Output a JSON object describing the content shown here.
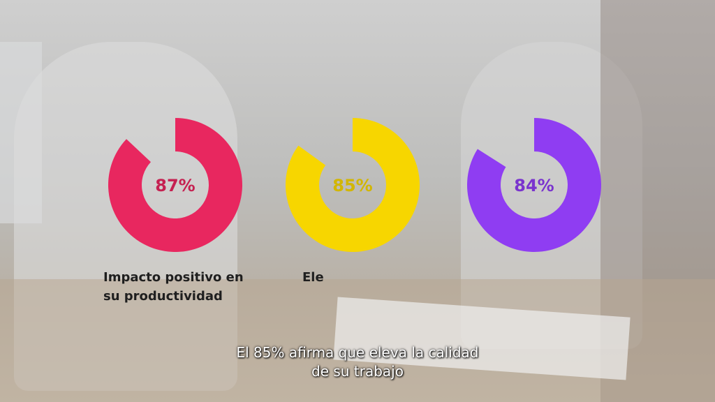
{
  "chart_data": [
    {
      "type": "donut",
      "values": [
        87
      ],
      "value_labels": [
        "87%"
      ],
      "color": "#e8275f",
      "label": "Impacto positivo en su productividad"
    },
    {
      "type": "donut",
      "values": [
        85
      ],
      "value_labels": [
        "85%"
      ],
      "color": "#f7d600",
      "label": "Ele"
    },
    {
      "type": "donut",
      "values": [
        84
      ],
      "value_labels": [
        "84%"
      ],
      "color": "#8f3df2"
    }
  ],
  "caption": "El 85% afirma que eleva la calidad de su trabajo"
}
